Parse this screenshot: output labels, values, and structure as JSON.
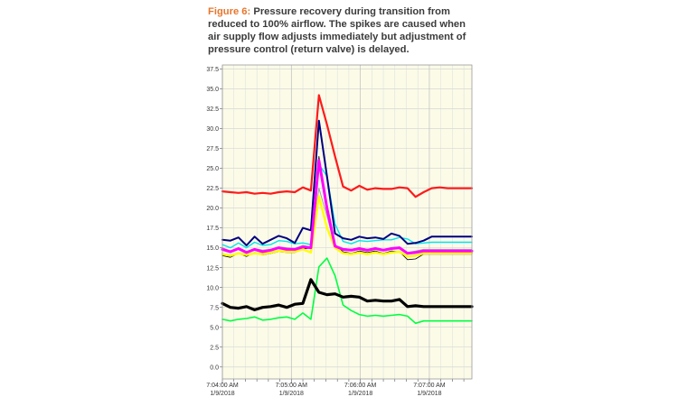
{
  "caption": {
    "label": "Figure 6:",
    "text": " Pressure recovery during transition from reduced to 100% airflow. The spikes are caused when air supply flow adjusts immediately but adjustment of pressure control (return valve) is delayed."
  },
  "chart_data": {
    "type": "line",
    "title": "",
    "xlabel": "",
    "ylabel": "",
    "ylim": [
      -1.5,
      38
    ],
    "y_ticks": [
      "37.5",
      "35.0",
      "32.5",
      "30.0",
      "27.5",
      "25.0",
      "22.5",
      "20.0",
      "17.5",
      "15.0",
      "12.5",
      "10.0",
      "7.5",
      "5.0",
      "2.5",
      "0.0"
    ],
    "x_ticks": [
      {
        "time": "7:04:00 AM",
        "date": "1/9/2018"
      },
      {
        "time": "7:05:00 AM",
        "date": "1/9/2018"
      },
      {
        "time": "7:06:00 AM",
        "date": "1/9/2018"
      },
      {
        "time": "7:07:00 AM",
        "date": "1/9/2018"
      }
    ],
    "x_times": [
      "7:04:00",
      "7:04:07",
      "7:04:14",
      "7:04:21",
      "7:04:28",
      "7:04:35",
      "7:04:42",
      "7:04:49",
      "7:04:56",
      "7:05:03",
      "7:05:10",
      "7:05:17",
      "7:05:24",
      "7:05:31",
      "7:05:38",
      "7:05:45",
      "7:05:52",
      "7:05:59",
      "7:06:06",
      "7:06:13",
      "7:06:20",
      "7:06:27",
      "7:06:34",
      "7:06:41",
      "7:06:48",
      "7:06:55",
      "7:07:02",
      "7:07:09",
      "7:07:16",
      "7:07:23",
      "7:07:30",
      "7:07:37"
    ],
    "grid": true,
    "background": "#fbfbe8",
    "series": [
      {
        "color": "#ff1a1a",
        "width": 2.2,
        "values": [
          22.1,
          22.0,
          21.9,
          22.0,
          21.8,
          21.9,
          21.8,
          22.0,
          22.1,
          22.0,
          22.6,
          22.2,
          34.2,
          30.5,
          26.5,
          22.7,
          22.2,
          22.8,
          22.3,
          22.5,
          22.4,
          22.4,
          22.6,
          22.5,
          21.4,
          22.0,
          22.5,
          22.6,
          22.5,
          22.5,
          22.5,
          22.5
        ]
      },
      {
        "color": "#00ff40",
        "width": 1.6,
        "values": [
          6.0,
          5.8,
          6.0,
          6.1,
          6.3,
          5.9,
          6.0,
          6.2,
          6.3,
          6.0,
          6.8,
          6.0,
          12.6,
          13.7,
          11.5,
          7.8,
          7.1,
          6.6,
          6.4,
          6.5,
          6.4,
          6.5,
          6.6,
          6.4,
          5.5,
          5.8,
          5.8,
          5.8,
          5.8,
          5.8,
          5.8,
          5.8
        ]
      },
      {
        "color": "#000000",
        "width": 3.2,
        "values": [
          8.0,
          7.5,
          7.4,
          7.6,
          7.2,
          7.5,
          7.6,
          7.8,
          7.5,
          7.9,
          8.0,
          11.0,
          9.4,
          9.1,
          9.2,
          8.8,
          8.9,
          8.8,
          8.3,
          8.4,
          8.3,
          8.3,
          8.5,
          7.6,
          7.7,
          7.6,
          7.6,
          7.6,
          7.6,
          7.6,
          7.6,
          7.6
        ]
      },
      {
        "color": "#00e5ee",
        "width": 1.4,
        "values": [
          15.4,
          15.0,
          15.6,
          15.0,
          15.7,
          15.3,
          15.4,
          15.9,
          15.8,
          15.5,
          15.6,
          15.4,
          25.5,
          24.0,
          18.0,
          15.8,
          15.5,
          15.9,
          15.8,
          15.9,
          16.0,
          16.0,
          16.3,
          16.1,
          15.5,
          15.6,
          15.7,
          15.7,
          15.7,
          15.7,
          15.7,
          15.7
        ]
      },
      {
        "color": "#000080",
        "width": 2.0,
        "values": [
          16.0,
          15.9,
          16.3,
          15.3,
          16.4,
          15.5,
          16.0,
          16.5,
          16.2,
          15.6,
          17.5,
          17.2,
          31.0,
          24.0,
          16.8,
          16.2,
          16.0,
          16.4,
          16.2,
          16.3,
          16.1,
          16.8,
          16.5,
          15.5,
          15.6,
          15.9,
          16.4,
          16.4,
          16.4,
          16.4,
          16.4,
          16.4
        ]
      },
      {
        "color": "#000000",
        "width": 0.8,
        "values": [
          14.0,
          13.8,
          14.3,
          13.9,
          14.4,
          14.1,
          14.3,
          14.5,
          14.4,
          14.4,
          14.8,
          15.0,
          26.5,
          19.5,
          15.4,
          14.5,
          14.3,
          14.6,
          14.4,
          14.6,
          14.3,
          14.6,
          14.5,
          13.5,
          13.6,
          14.2,
          14.2,
          14.2,
          14.2,
          14.2,
          14.2,
          14.2
        ]
      },
      {
        "color": "#a0a0a0",
        "width": 1.0,
        "values": [
          15.0,
          14.6,
          14.9,
          14.5,
          14.9,
          14.7,
          14.8,
          15.1,
          15.0,
          14.9,
          15.3,
          15.1,
          22.5,
          19.0,
          15.2,
          14.9,
          14.8,
          15.0,
          14.8,
          15.0,
          14.8,
          15.0,
          15.1,
          14.4,
          14.6,
          14.8,
          14.8,
          14.8,
          14.8,
          14.8,
          14.8,
          14.8
        ]
      },
      {
        "color": "#ffff00",
        "width": 2.4,
        "values": [
          14.2,
          14.0,
          14.3,
          14.1,
          14.3,
          14.2,
          14.4,
          14.6,
          14.5,
          14.5,
          14.8,
          14.4,
          21.5,
          17.5,
          15.0,
          14.3,
          14.2,
          14.4,
          14.2,
          14.4,
          14.2,
          14.4,
          14.5,
          13.9,
          14.0,
          14.3,
          14.3,
          14.3,
          14.3,
          14.3,
          14.3,
          14.3
        ]
      },
      {
        "color": "#ff00ff",
        "width": 3.0,
        "values": [
          14.8,
          14.5,
          14.9,
          14.4,
          14.8,
          14.5,
          14.7,
          15.0,
          14.8,
          14.8,
          15.1,
          15.0,
          26.0,
          20.0,
          15.2,
          14.8,
          14.7,
          14.9,
          14.7,
          14.9,
          14.7,
          14.9,
          15.0,
          14.3,
          14.4,
          14.6,
          14.6,
          14.6,
          14.6,
          14.6,
          14.6,
          14.6
        ]
      }
    ]
  }
}
